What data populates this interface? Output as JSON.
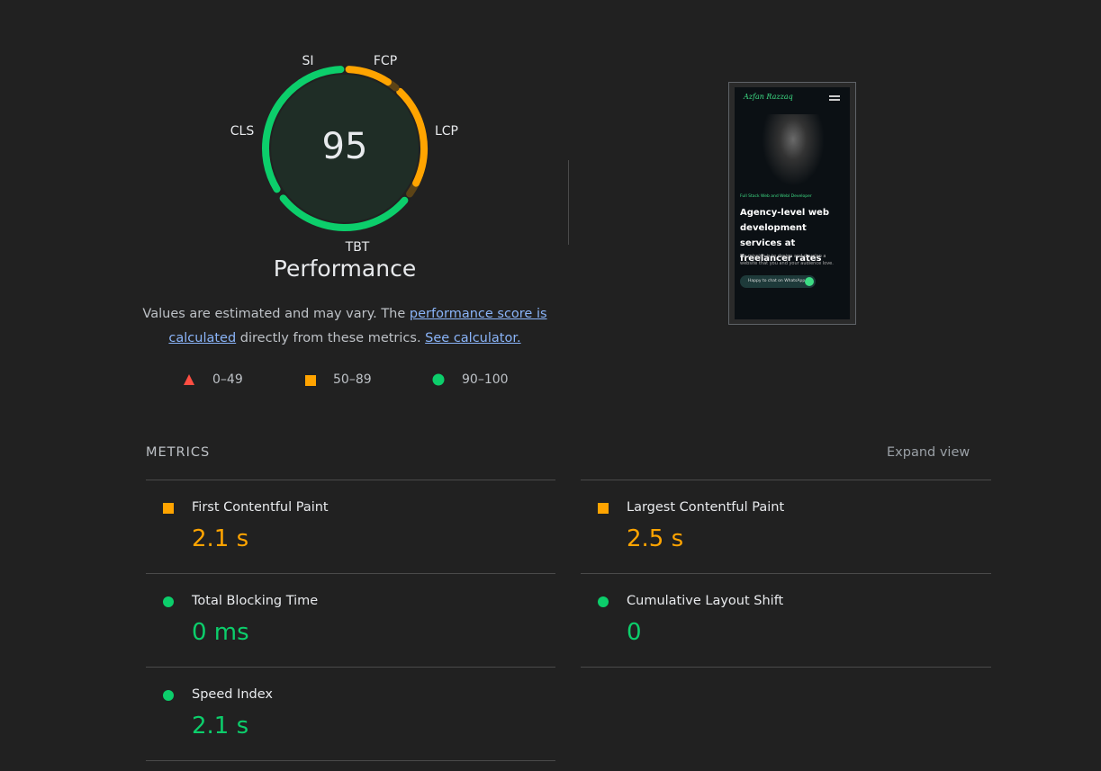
{
  "gauge": {
    "score": 95,
    "score_color": "#0cce6b",
    "labels": {
      "si": "SI",
      "fcp": "FCP",
      "lcp": "LCP",
      "tbt": "TBT",
      "cls": "CLS"
    },
    "title": "Performance"
  },
  "description": {
    "text_before": "Values are estimated and may vary. The ",
    "link_score": "performance score is calculated",
    "text_middle": " directly from these metrics.",
    "link_calculator": "See calculator."
  },
  "legend": [
    "0–49",
    "50–89",
    "90–100"
  ],
  "screenshot": {
    "brand": "Azfan Razzaq",
    "eyebrow": "Full Stack Web and Webl Developer",
    "headline": "Agency-level web development services at freelancer rates",
    "body": "My mission is to design and develop a website that you and your audience love.",
    "button": "Happy to chat on WhatsApp"
  },
  "metrics": {
    "heading": "METRICS",
    "expand": "Expand view",
    "items": [
      {
        "name": "First Contentful Paint",
        "value": "2.1 s",
        "color": "#ffa400",
        "icon": "square"
      },
      {
        "name": "Largest Contentful Paint",
        "value": "2.5 s",
        "color": "#ffa400",
        "icon": "square"
      },
      {
        "name": "Total Blocking Time",
        "value": "0 ms",
        "color": "#0cce6b",
        "icon": "circle"
      },
      {
        "name": "Cumulative Layout Shift",
        "value": "0",
        "color": "#0cce6b",
        "icon": "circle"
      },
      {
        "name": "Speed Index",
        "value": "2.1 s",
        "color": "#0cce6b",
        "icon": "circle"
      }
    ]
  }
}
